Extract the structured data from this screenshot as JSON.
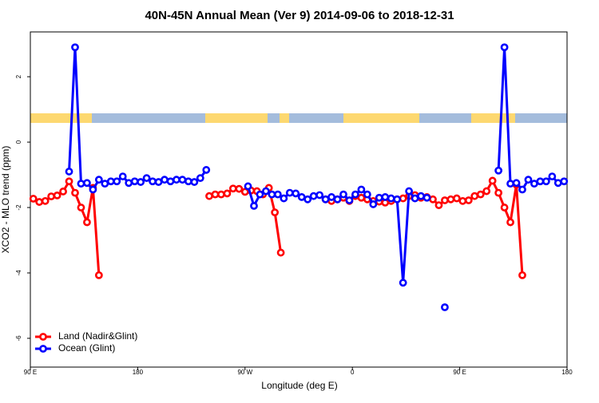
{
  "chart_data": {
    "type": "line",
    "title": "40N-45N Annual Mean (Ver 9)   2014-09-06 to 2018-12-31",
    "x_label": "Longitude (deg E)",
    "y_label": "XCO2 - MLO trend (ppm)",
    "xlim": [
      90,
      540
    ],
    "ylim": [
      -6.88,
      3.37
    ],
    "xticks": [
      {
        "value": 90,
        "label": "90 E"
      },
      180,
      {
        "value": 270,
        "label": "90 W"
      },
      {
        "value": 360,
        "label": "0"
      },
      {
        "value": 450,
        "label": "90 E"
      },
      {
        "value": 540,
        "label": "180"
      }
    ],
    "yticks": [
      -6,
      -4,
      -2,
      0,
      2
    ],
    "legend": "bottom-left",
    "series": [
      {
        "name": "Land (Nadir&Glint)",
        "color": "#ff0000",
        "x": [
          92.5,
          97.5,
          102.5,
          107.5,
          112.5,
          117.5,
          122.5,
          127.5,
          132.5,
          137.5,
          142.5,
          147.5,
          152.5,
          240,
          245,
          250,
          255,
          260,
          265,
          270,
          275,
          280,
          285,
          290,
          295,
          300,
          305,
          337.5,
          342.5,
          347.5,
          352.5,
          357.5,
          362.5,
          367.5,
          372.5,
          377.5,
          382.5,
          387.5,
          392.5,
          397.5,
          402.5,
          407.5,
          412.5,
          417.5,
          422.5,
          427.5,
          432.5,
          437.5,
          442.5,
          447.5,
          452.5,
          457.5,
          462.5,
          467.5,
          472.5,
          477.5,
          482.5,
          487.5,
          492.5,
          497.5,
          502.5
        ],
        "values": [
          -1.73,
          -1.83,
          -1.8,
          -1.66,
          -1.63,
          -1.51,
          -1.2,
          -1.55,
          -2.0,
          -2.45,
          -1.4,
          -4.07,
          null,
          -1.65,
          -1.6,
          -1.6,
          -1.57,
          -1.42,
          -1.43,
          -1.52,
          -1.48,
          -1.5,
          -1.6,
          -1.4,
          -2.15,
          -3.38,
          null,
          -1.75,
          -1.8,
          -1.75,
          -1.7,
          -1.8,
          -1.65,
          -1.7,
          -1.75,
          -1.8,
          -1.82,
          -1.85,
          -1.8,
          -1.75,
          -1.72,
          -1.65,
          -1.62,
          -1.7,
          -1.68,
          -1.75,
          -1.93,
          -1.78,
          -1.75,
          -1.72,
          -1.8,
          -1.78,
          -1.65,
          -1.6,
          -1.5,
          -1.18,
          -1.55,
          -2.0,
          -2.45,
          -1.3,
          -4.07
        ]
      },
      {
        "name": "Ocean (Glint)",
        "color": "#0000ff",
        "x": [
          122.5,
          127.5,
          132.5,
          137.5,
          142.5,
          147.5,
          152.5,
          157.5,
          162.5,
          167.5,
          172.5,
          177.5,
          182.5,
          187.5,
          192.5,
          197.5,
          202.5,
          207.5,
          212.5,
          217.5,
          222.5,
          227.5,
          232.5,
          237.5,
          242.5,
          272.5,
          277.5,
          282.5,
          287.5,
          292.5,
          297.5,
          302.5,
          307.5,
          312.5,
          317.5,
          322.5,
          327.5,
          332.5,
          337.5,
          342.5,
          347.5,
          352.5,
          357.5,
          362.5,
          367.5,
          372.5,
          377.5,
          382.5,
          387.5,
          392.5,
          397.5,
          402.5,
          407.5,
          412.5,
          417.5,
          422.5,
          427.5,
          437.5,
          442.5,
          482.5,
          487.5,
          492.5,
          497.5,
          502.5,
          507.5,
          512.5,
          517.5,
          522.5,
          527.5,
          532.5,
          537.5
        ],
        "values": [
          -0.9,
          2.9,
          -1.27,
          -1.25,
          -1.45,
          -1.15,
          -1.27,
          -1.2,
          -1.2,
          -1.05,
          -1.25,
          -1.2,
          -1.22,
          -1.1,
          -1.2,
          -1.22,
          -1.15,
          -1.2,
          -1.15,
          -1.15,
          -1.2,
          -1.22,
          -1.1,
          -0.85,
          null,
          -1.35,
          -1.95,
          -1.6,
          -1.5,
          -1.6,
          -1.6,
          -1.72,
          -1.55,
          -1.57,
          -1.68,
          -1.75,
          -1.65,
          -1.62,
          -1.75,
          -1.68,
          -1.75,
          -1.6,
          -1.78,
          -1.6,
          -1.45,
          -1.6,
          -1.9,
          -1.7,
          -1.68,
          -1.72,
          -1.75,
          -4.3,
          -1.5,
          -1.72,
          -1.65,
          -1.7,
          null,
          -5.05,
          null,
          -0.87,
          2.9,
          -1.27,
          -1.25,
          -1.45,
          -1.15,
          -1.27,
          -1.2,
          -1.2,
          -1.05,
          -1.25,
          -1.2
        ]
      }
    ]
  }
}
